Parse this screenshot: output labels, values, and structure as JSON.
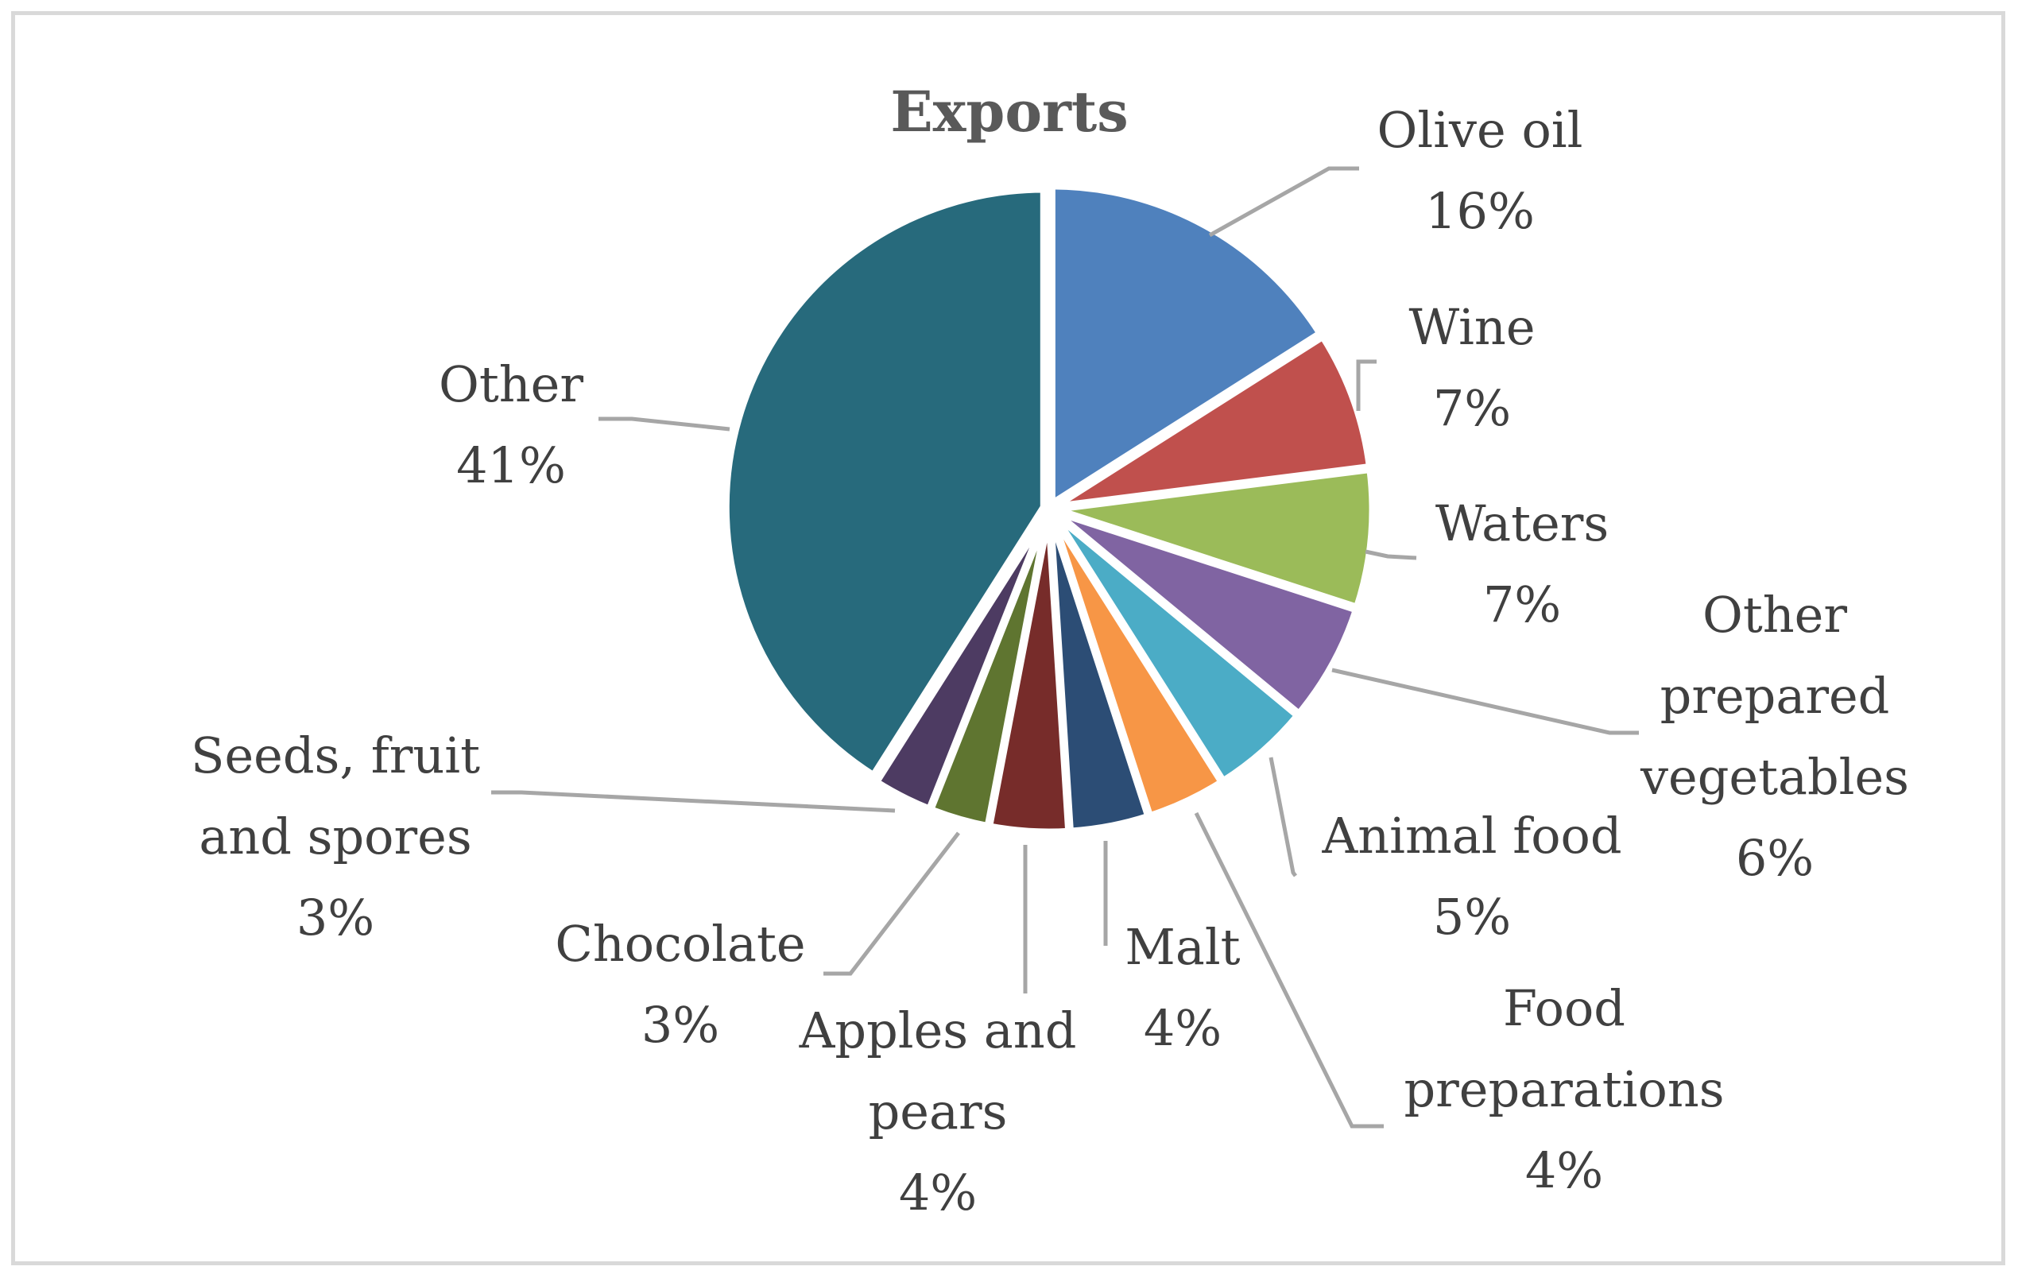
{
  "chart_data": {
    "type": "pie",
    "title": "Exports",
    "slices": [
      {
        "name": "Olive oil",
        "value": 16,
        "label": "16%",
        "color": "#4f81bd"
      },
      {
        "name": "Wine",
        "value": 7,
        "label": "7%",
        "color": "#c0504d"
      },
      {
        "name": "Waters",
        "value": 7,
        "label": "7%",
        "color": "#9bbb59"
      },
      {
        "name": "Other prepared vegetables",
        "value": 6,
        "label": "6%",
        "color": "#8064a2"
      },
      {
        "name": "Animal food",
        "value": 5,
        "label": "5%",
        "color": "#4bacc6"
      },
      {
        "name": "Food preparations",
        "value": 4,
        "label": "4%",
        "color": "#f79646"
      },
      {
        "name": "Malt",
        "value": 4,
        "label": "4%",
        "color": "#2c4d75"
      },
      {
        "name": "Apples and pears",
        "value": 4,
        "label": "4%",
        "color": "#772c2a"
      },
      {
        "name": "Chocolate",
        "value": 3,
        "label": "3%",
        "color": "#5f7530"
      },
      {
        "name": "Seeds, fruit and spores",
        "value": 3,
        "label": "3%",
        "color": "#4d3b62"
      },
      {
        "name": "Other",
        "value": 41,
        "label": "41%",
        "color": "#276a7c"
      }
    ],
    "label_lines": [
      [
        "Olive oil",
        "16%"
      ],
      [
        "Wine",
        "7%"
      ],
      [
        "Waters",
        "7%"
      ],
      [
        "Other",
        "prepared",
        "vegetables",
        "6%"
      ],
      [
        "Animal food",
        "5%"
      ],
      [
        "Food",
        "preparations",
        "4%"
      ],
      [
        "Malt",
        "4%"
      ],
      [
        "Apples and",
        "pears",
        "4%"
      ],
      [
        "Chocolate",
        "3%"
      ],
      [
        "Seeds, fruit",
        "and spores",
        "3%"
      ],
      [
        "Other",
        "41%"
      ]
    ]
  }
}
